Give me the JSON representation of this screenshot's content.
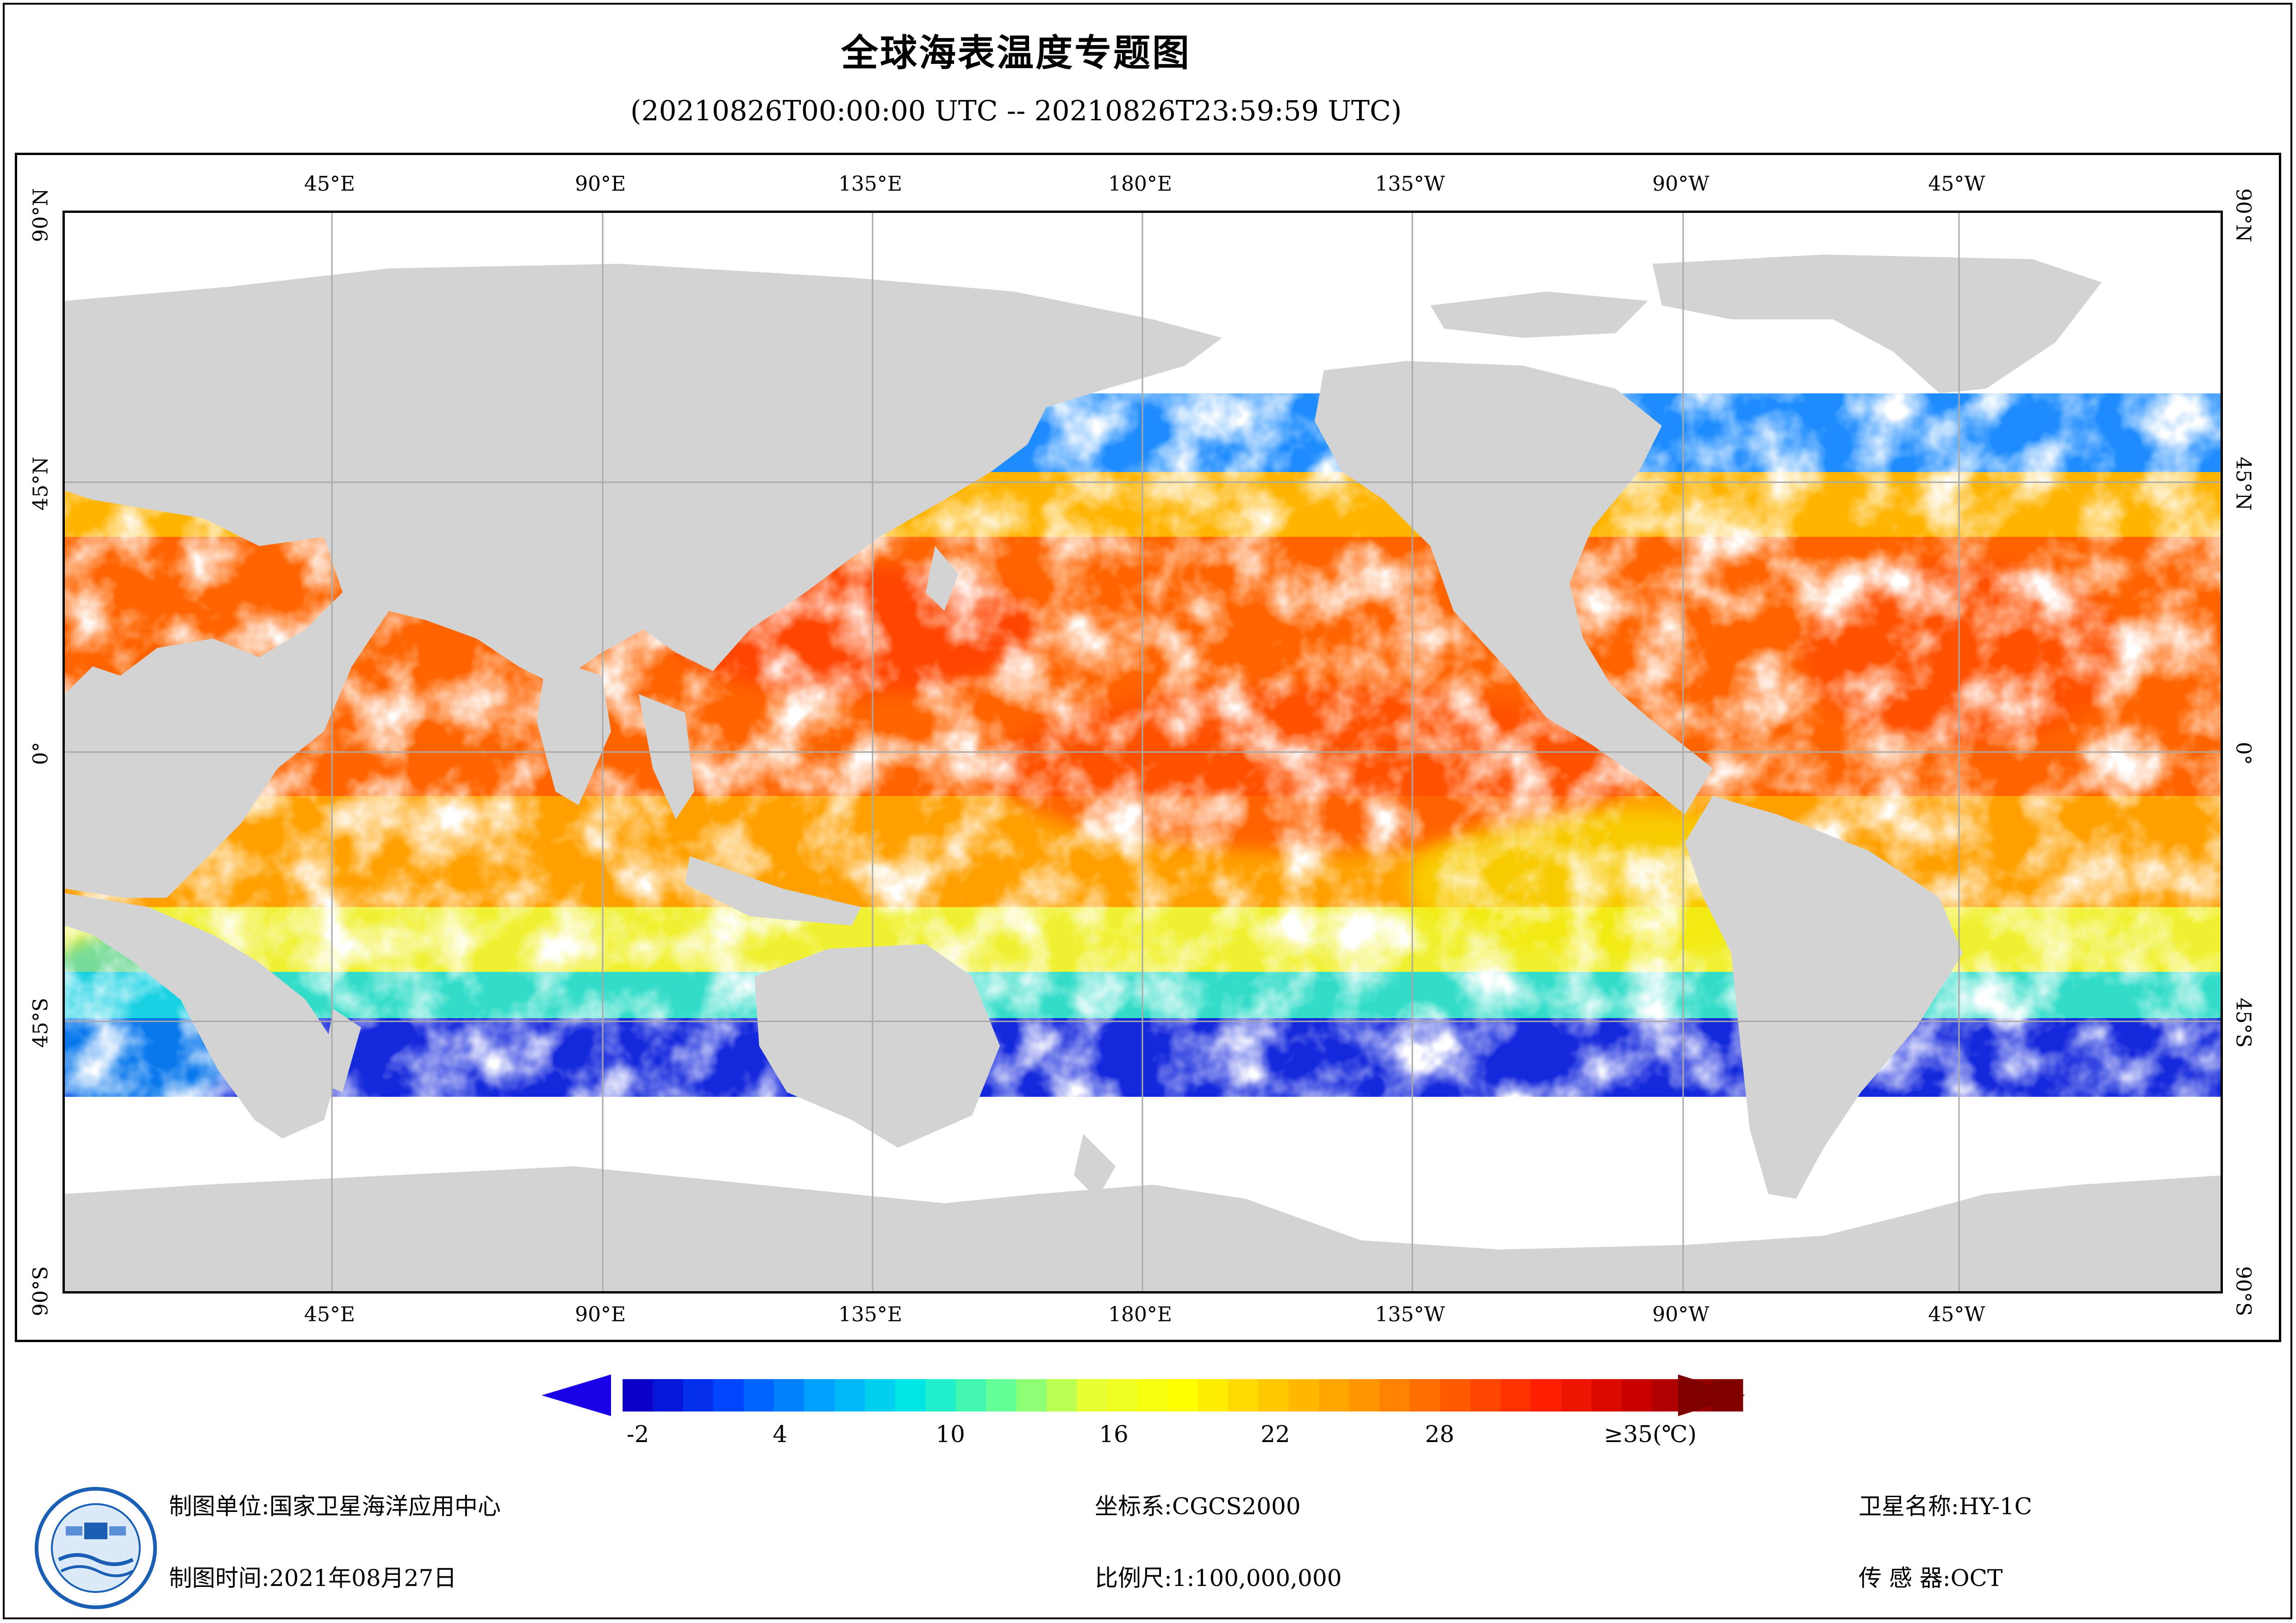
{
  "title": "全球海表温度专题图",
  "subtitle": "(20210826T00:00:00 UTC -- 20210826T23:59:59 UTC)",
  "map": {
    "lon_ticks_top": [
      "45°E",
      "90°E",
      "135°E",
      "180°E",
      "135°W",
      "90°W",
      "45°W"
    ],
    "lon_ticks_bottom": [
      "45°E",
      "90°E",
      "135°E",
      "180°E",
      "135°W",
      "90°W",
      "45°W"
    ],
    "lat_ticks_left": [
      "90°N",
      "45°N",
      "0°",
      "45°S",
      "90°S"
    ],
    "lat_ticks_right": [
      "90°N",
      "45°N",
      "0°",
      "45°S",
      "90°S"
    ],
    "land_color": "#d3d3d3",
    "grid_color": "#a9a9a9",
    "no_data_color": "#ffffff"
  },
  "colorbar": {
    "tick_labels": [
      "-2",
      "4",
      "10",
      "16",
      "22",
      "28",
      "≥35(℃)"
    ],
    "min_value": -2,
    "max_value": 35,
    "colors": [
      "#0a00c8",
      "#0046ff",
      "#00a0ff",
      "#00e6e6",
      "#64ff96",
      "#e6ff32",
      "#ffff00",
      "#ffc800",
      "#ff9600",
      "#ff5a00",
      "#ff1e00",
      "#c80000",
      "#800000"
    ],
    "under_color": "#1a00e6",
    "over_color": "#800000"
  },
  "footer": {
    "org": "制图单位:国家卫星海洋应用中心",
    "date": "制图时间:2021年08月27日",
    "crs": "坐标系:CGCS2000",
    "scale": "比例尺:1:100,000,000",
    "satellite": "卫星名称:HY-1C",
    "sensor": "传 感 器:OCT"
  },
  "logo": {
    "icon": "nsoas-logo-icon"
  }
}
